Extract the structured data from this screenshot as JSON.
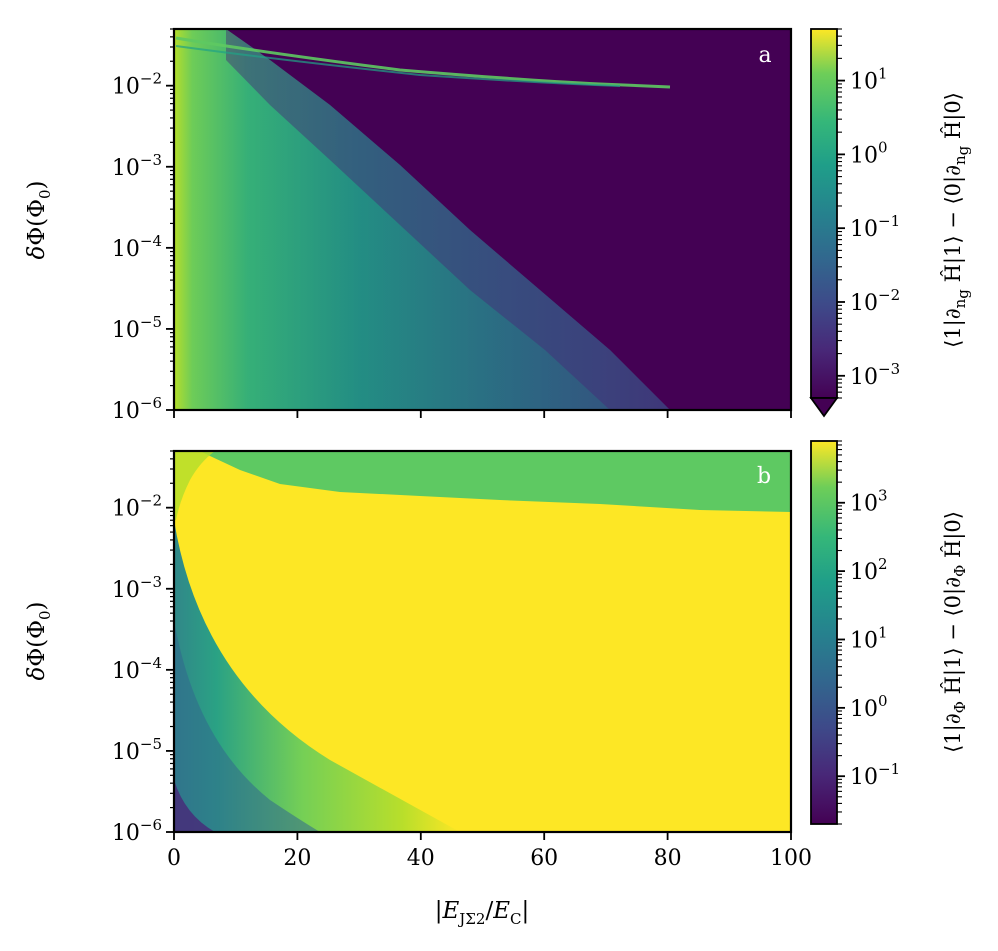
{
  "chart_data": [
    {
      "panel": "a",
      "type": "heatmap",
      "xlabel": "|E_JΣ2 / E_C|",
      "ylabel": "δΦ(Φ0)",
      "xlim": [
        0,
        100
      ],
      "ylim": [
        1e-06,
        0.05
      ],
      "yscale": "log",
      "x_ticks": [
        "0",
        "20",
        "40",
        "60",
        "80",
        "100"
      ],
      "y_ticks": [
        {
          "base": "10",
          "exp": "−6"
        },
        {
          "base": "10",
          "exp": "−5"
        },
        {
          "base": "10",
          "exp": "−4"
        },
        {
          "base": "10",
          "exp": "−3"
        },
        {
          "base": "10",
          "exp": "−2"
        }
      ],
      "colorbar": {
        "label": "⟨1|∂_ng Ĥ|1⟩ − ⟨0|∂_ng Ĥ|0⟩",
        "scale": "log",
        "extend": "min",
        "range": [
          0.0005,
          50
        ],
        "ticks": [
          {
            "base": "10",
            "exp": "−3"
          },
          {
            "base": "10",
            "exp": "−2"
          },
          {
            "base": "10",
            "exp": "−1"
          },
          {
            "base": "10",
            "exp": "0"
          },
          {
            "base": "10",
            "exp": "1"
          }
        ],
        "colormap": "viridis"
      }
    },
    {
      "panel": "b",
      "type": "heatmap",
      "xlabel": "|E_JΣ2 / E_C|",
      "ylabel": "δΦ(Φ0)",
      "xlim": [
        0,
        100
      ],
      "ylim": [
        1e-06,
        0.05
      ],
      "yscale": "log",
      "x_ticks": [
        "0",
        "20",
        "40",
        "60",
        "80",
        "100"
      ],
      "y_ticks": [
        {
          "base": "10",
          "exp": "−6"
        },
        {
          "base": "10",
          "exp": "−5"
        },
        {
          "base": "10",
          "exp": "−4"
        },
        {
          "base": "10",
          "exp": "−3"
        },
        {
          "base": "10",
          "exp": "−2"
        }
      ],
      "colorbar": {
        "label": "⟨1|∂_Φ Ĥ|1⟩ − ⟨0|∂_Φ Ĥ|0⟩",
        "scale": "log",
        "range": [
          0.02,
          8000
        ],
        "ticks": [
          {
            "base": "10",
            "exp": "−1"
          },
          {
            "base": "10",
            "exp": "0"
          },
          {
            "base": "10",
            "exp": "1"
          },
          {
            "base": "10",
            "exp": "2"
          },
          {
            "base": "10",
            "exp": "3"
          }
        ],
        "colormap": "viridis"
      }
    }
  ],
  "colors": {
    "viridis_dark": "#440154",
    "viridis_teal": "#21918c",
    "viridis_green": "#5ec962",
    "viridis_yellow": "#fde725"
  }
}
